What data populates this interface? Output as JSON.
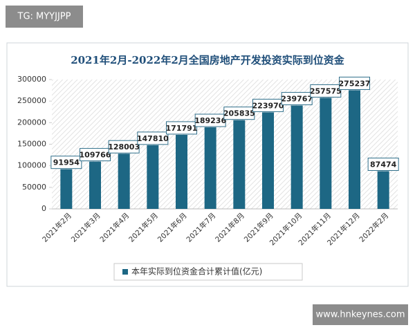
{
  "watermarks": [
    "TG: MYYJJPP",
    "www.hnkeynes.com"
  ],
  "chart_data": {
    "type": "bar",
    "title": "2021年2月-2022年2月全国房地产开发投资实际到位资金",
    "categories": [
      "2021年2月",
      "2021年3月",
      "2021年4月",
      "2021年5月",
      "2021年6月",
      "2021年7月",
      "2021年8月",
      "2021年9月",
      "2021年10月",
      "2021年11月",
      "2021年12月",
      "2022年2月"
    ],
    "series": [
      {
        "name": "本年实际到位资金合计累计值(亿元)",
        "color": "#1d6784",
        "values": [
          91954,
          109766,
          128003,
          147810,
          171791,
          189236,
          205835,
          223970,
          239767,
          257575,
          275237,
          87474
        ]
      }
    ],
    "ylim": [
      0,
      300000
    ],
    "yticks": [
      0,
      50000,
      100000,
      150000,
      200000,
      250000,
      300000
    ],
    "legend": "bottom"
  }
}
